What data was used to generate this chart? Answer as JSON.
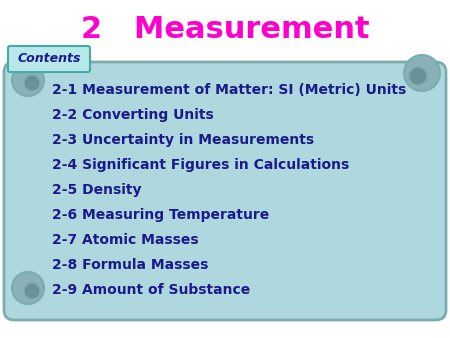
{
  "title": "2   Measurement",
  "title_color": "#FF00CC",
  "title_fontsize": 22,
  "contents_label": "Contents",
  "contents_label_color": "#1a1a99",
  "contents_box_facecolor": "#aadddd",
  "contents_box_edge": "#44aaaa",
  "background_color": "#ffffff",
  "scroll_bg_color": "#aed8de",
  "scroll_border_color": "#7aadad",
  "curl_color": "#8ab0b8",
  "curl_inner_color": "#6a9098",
  "items": [
    "2-1 Measurement of Matter: SI (Metric) Units",
    "2-2 Converting Units",
    "2-3 Uncertainty in Measurements",
    "2-4 Significant Figures in Calculations",
    "2-5 Density",
    "2-6 Measuring Temperature",
    "2-7 Atomic Masses",
    "2-8 Formula Masses",
    "2-9 Amount of Substance"
  ],
  "items_color": "#1a1a8c",
  "items_fontsize": 10.0,
  "fig_width": 4.5,
  "fig_height": 3.38,
  "dpi": 100
}
